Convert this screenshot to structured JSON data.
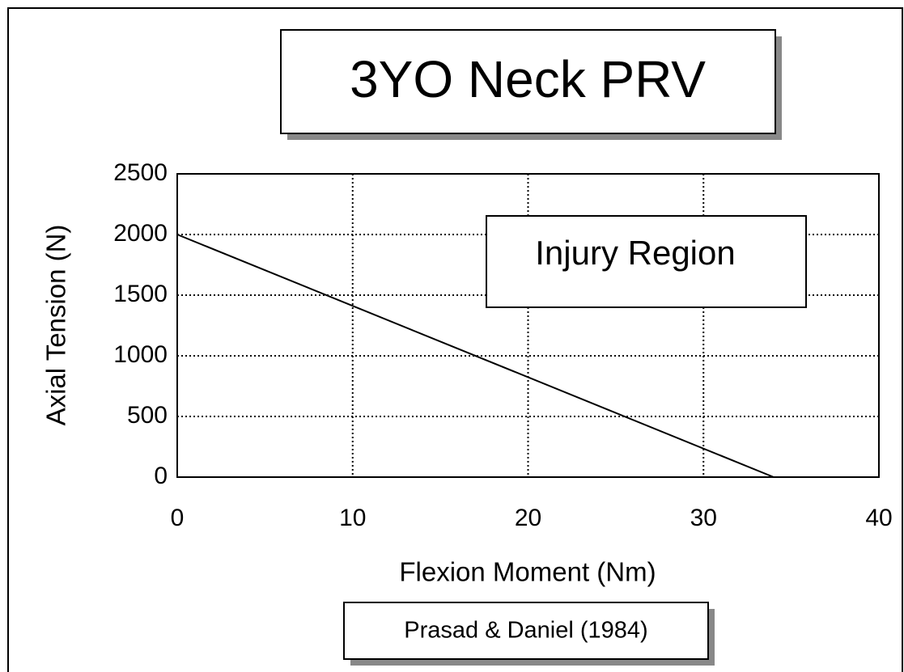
{
  "chart_data": {
    "type": "line",
    "title": "3YO Neck PRV",
    "x_label": "Flexion Moment (Nm)",
    "y_label": "Axial Tension (N)",
    "annotations": [
      "Injury Region",
      "Prasad & Daniel (1984)"
    ],
    "x": [
      0,
      34
    ],
    "values": [
      2000,
      0
    ],
    "color": "#000000",
    "xlim": [
      0,
      40
    ],
    "xticks": [
      0,
      10,
      20,
      30,
      40
    ],
    "ylim": [
      0,
      2500
    ],
    "yticks": [
      0,
      500,
      1000,
      1500,
      2000,
      2500
    ],
    "grid": true
  }
}
